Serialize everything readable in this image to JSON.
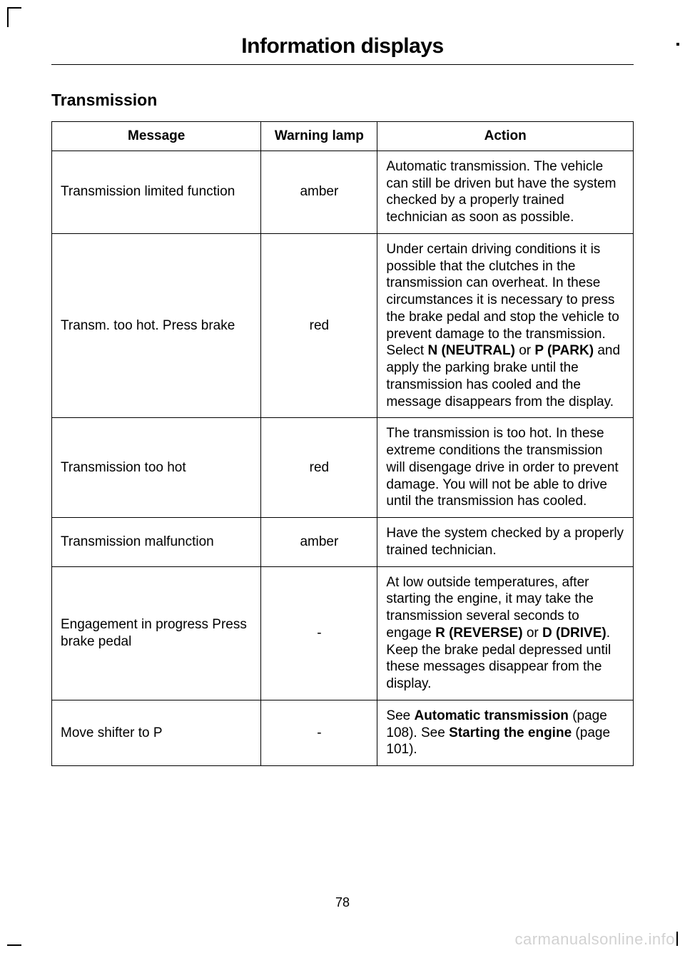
{
  "chapter_title": "Information displays",
  "section_title": "Transmission",
  "page_number": "78",
  "watermark": "carmanualsonline.info",
  "table": {
    "columns": [
      "Message",
      "Warning lamp",
      "Action"
    ],
    "col_widths_pct": [
      36,
      20,
      44
    ],
    "border_color": "#000000",
    "font_size_pt": 14,
    "rows": [
      {
        "message": "Transmission limited function",
        "lamp": "amber",
        "action_parts": [
          {
            "t": "Automatic transmission. The vehicle can still be driven but have the system checked by a properly trained technician as soon as possible.",
            "b": false
          }
        ]
      },
      {
        "message": "Transm. too hot. Press brake",
        "lamp": "red",
        "action_parts": [
          {
            "t": "Under certain driving conditions it is possible that the clutches in the transmission can overheat. In these circumstances it is necessary to press the brake pedal and stop the vehicle to prevent damage to the transmission. Select ",
            "b": false
          },
          {
            "t": "N (NEUTRAL)",
            "b": true
          },
          {
            "t": " or ",
            "b": false
          },
          {
            "t": "P (PARK)",
            "b": true
          },
          {
            "t": " and apply the parking brake until the transmission has cooled and the message disappears from the display.",
            "b": false
          }
        ]
      },
      {
        "message": "Transmission too hot",
        "lamp": "red",
        "action_parts": [
          {
            "t": "The transmission is too hot. In these extreme conditions the transmission will disengage drive in order to prevent damage. You will not be able to drive until the transmission has cooled.",
            "b": false
          }
        ]
      },
      {
        "message": "Transmission malfunction",
        "lamp": "amber",
        "action_parts": [
          {
            "t": "Have the system checked by a properly trained technician.",
            "b": false
          }
        ]
      },
      {
        "message": "Engagement in progress Press brake pedal",
        "lamp": "-",
        "action_parts": [
          {
            "t": "At low outside temperatures, after starting the engine, it may take the transmission several seconds to engage ",
            "b": false
          },
          {
            "t": "R (REVERSE)",
            "b": true
          },
          {
            "t": " or ",
            "b": false
          },
          {
            "t": "D (DRIVE)",
            "b": true
          },
          {
            "t": ". Keep the brake pedal depressed until these messages disappear from the display.",
            "b": false
          }
        ]
      },
      {
        "message": "Move shifter to P",
        "lamp": "-",
        "action_parts": [
          {
            "t": "See ",
            "b": false
          },
          {
            "t": "Automatic transmission",
            "b": true
          },
          {
            "t": " (page 108).  See ",
            "b": false
          },
          {
            "t": "Starting the engine",
            "b": true
          },
          {
            "t": " (page 101).",
            "b": false
          }
        ]
      }
    ]
  }
}
